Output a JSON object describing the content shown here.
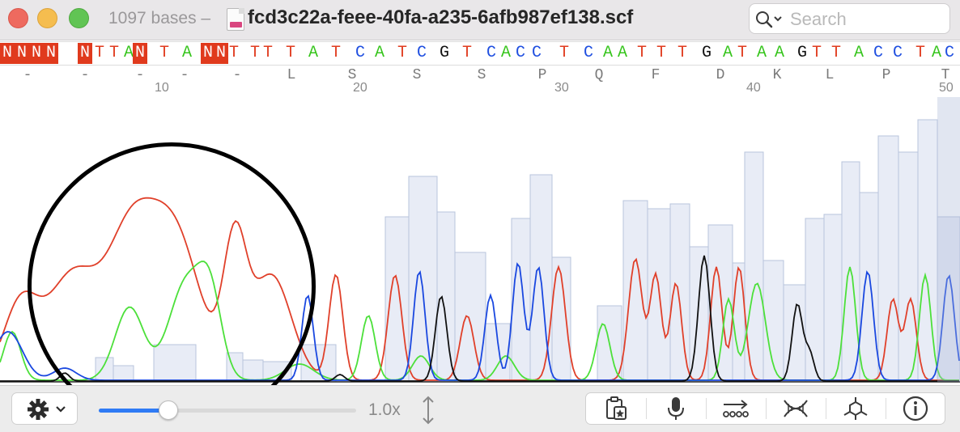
{
  "window": {
    "subtitle": "1097 bases –",
    "title": "fcd3c22a-feee-40fa-a235-6afb987ef138.scf",
    "file_icon_label": "SCF"
  },
  "search": {
    "placeholder": "Search",
    "value": ""
  },
  "sequence": {
    "bases": [
      "N",
      "N",
      "N",
      "N",
      "N",
      "T",
      "T",
      "A",
      "N",
      "T",
      "A",
      "N",
      "N",
      "T",
      "T",
      "T",
      "T",
      "A",
      "T",
      "C",
      "A",
      "T",
      "C",
      "G",
      "T",
      "C",
      "A",
      "C",
      "C",
      "T",
      "C",
      "A",
      "A",
      "T",
      "T",
      "T",
      "G",
      "A",
      "T",
      "A",
      "A",
      "G",
      "T",
      "T",
      "A",
      "C",
      "C",
      "T",
      "A",
      "C"
    ],
    "colors": {
      "A": "#36c51c",
      "C": "#1f4fe0",
      "G": "#111111",
      "T": "#e03a1d",
      "N": "#ffffff"
    },
    "n_background": "#e03a1d",
    "amino_acids": [
      "-",
      "-",
      "-",
      "-",
      "-",
      "L",
      "S",
      "S",
      "S",
      "P",
      "Q",
      "F",
      "D",
      "K",
      "L",
      "P",
      "T"
    ],
    "positions": [
      "10",
      "20",
      "30",
      "40",
      "50"
    ]
  },
  "toolbar": {
    "zoom_label": "1.0x",
    "zoom_fraction": 0.27,
    "gear_icon": "gear-icon",
    "tools": [
      "clipboard-star-icon",
      "microphone-icon",
      "arrow-right-dna-icon",
      "dna-helix-icon",
      "molecule-icon",
      "info-icon"
    ]
  }
}
